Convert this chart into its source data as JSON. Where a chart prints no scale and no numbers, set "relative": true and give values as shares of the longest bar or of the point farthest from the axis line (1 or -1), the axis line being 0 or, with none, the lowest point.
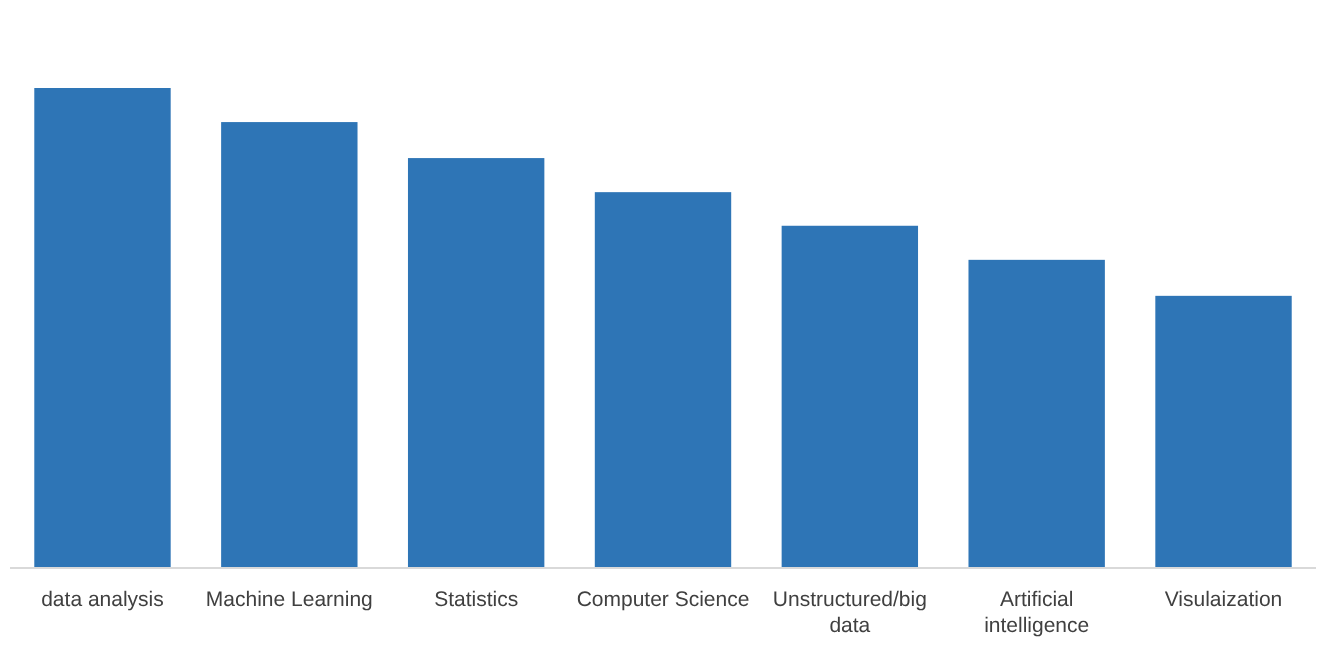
{
  "chart_data": {
    "type": "bar",
    "relative": true,
    "categories": [
      "data analysis",
      "Machine Learning",
      "Statistics",
      "Computer Science",
      "Unstructured/big data",
      "Artificial intelligence",
      "Visulaization"
    ],
    "values": [
      1,
      0.929,
      0.854,
      0.783,
      0.713,
      0.642,
      0.567
    ],
    "color": "#2e75b6"
  }
}
